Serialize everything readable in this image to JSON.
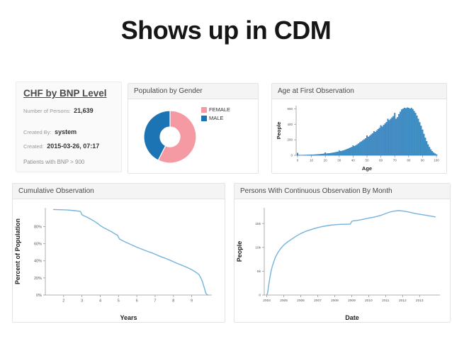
{
  "page": {
    "title": "Shows up in CDM"
  },
  "colors": {
    "female_pink": "#f59aa2",
    "male_blue": "#1c74b4",
    "bar_fill": "#4292c6",
    "bar_stroke": "#2171b5",
    "line_blue": "#74b3de",
    "axis": "#999999",
    "tick_text": "#555555",
    "label_text": "#222222"
  },
  "cohort_panel": {
    "title": "CHF by BNP Level",
    "fields": [
      {
        "label": "Number of Persons:",
        "value": "21,639"
      },
      {
        "label": "Created By:",
        "value": "system"
      },
      {
        "label": "Created:",
        "value": "2015-03-26, 07:17"
      }
    ],
    "footnote": "Patients with BNP > 900"
  },
  "chart_data": [
    {
      "id": "gender",
      "type": "pie",
      "title": "Population by Gender",
      "labels": [
        "FEMALE",
        "MALE"
      ],
      "values": [
        57.5,
        42.5
      ],
      "colors": [
        "#f59aa2",
        "#1c74b4"
      ],
      "donut": true,
      "legend_position": "right"
    },
    {
      "id": "age",
      "type": "bar",
      "title": "Age at First Observation",
      "xlabel": "Age",
      "ylabel": "People",
      "xlim": [
        -1,
        101
      ],
      "ylim": [
        0,
        640
      ],
      "xticks": [
        0,
        10,
        20,
        30,
        40,
        50,
        60,
        70,
        80,
        90,
        100
      ],
      "yticks": [
        0,
        200,
        400,
        600
      ],
      "ytick_labels": [
        "0",
        "200",
        "400",
        "600"
      ],
      "categories_note": "age in years 0-100, one bar per year",
      "values": [
        30,
        4,
        3,
        3,
        4,
        4,
        5,
        5,
        6,
        6,
        8,
        8,
        9,
        10,
        11,
        13,
        14,
        16,
        18,
        20,
        35,
        22,
        24,
        26,
        28,
        32,
        34,
        38,
        42,
        45,
        60,
        52,
        56,
        62,
        68,
        75,
        82,
        90,
        98,
        106,
        125,
        118,
        128,
        140,
        152,
        168,
        178,
        192,
        205,
        218,
        255,
        238,
        252,
        268,
        282,
        310,
        300,
        318,
        336,
        352,
        385,
        370,
        390,
        410,
        428,
        470,
        452,
        470,
        488,
        505,
        545,
        470,
        490,
        530,
        560,
        590,
        600,
        612,
        605,
        615,
        610,
        600,
        612,
        595,
        570,
        545,
        510,
        470,
        425,
        380,
        330,
        275,
        225,
        180,
        140,
        105,
        75,
        52,
        35,
        22,
        12
      ]
    },
    {
      "id": "cumulative",
      "type": "line",
      "title": "Cumulative Observation",
      "xlabel": "Years",
      "ylabel": "Percent of Population",
      "xlim": [
        1,
        10.1
      ],
      "ylim": [
        0,
        102
      ],
      "xticks": [
        2,
        3,
        4,
        5,
        6,
        7,
        8,
        9
      ],
      "yticks": [
        0,
        20,
        40,
        60,
        80
      ],
      "ytick_labels": [
        "0%",
        "20%",
        "40%",
        "60%",
        "80%"
      ],
      "points": [
        [
          1.45,
          100
        ],
        [
          1.8,
          99.8
        ],
        [
          2.2,
          99.4
        ],
        [
          2.6,
          98.7
        ],
        [
          2.9,
          97.8
        ],
        [
          2.95,
          96.5
        ],
        [
          3.0,
          94.0
        ],
        [
          3.1,
          92.8
        ],
        [
          3.3,
          90.8
        ],
        [
          3.5,
          88.4
        ],
        [
          3.7,
          86.0
        ],
        [
          3.9,
          83.0
        ],
        [
          4.0,
          81.2
        ],
        [
          4.2,
          78.6
        ],
        [
          4.4,
          76.4
        ],
        [
          4.6,
          74.2
        ],
        [
          4.8,
          71.6
        ],
        [
          4.95,
          69.8
        ],
        [
          5.0,
          67.5
        ],
        [
          5.05,
          65.5
        ],
        [
          5.2,
          63.8
        ],
        [
          5.4,
          61.7
        ],
        [
          5.6,
          59.8
        ],
        [
          5.8,
          57.8
        ],
        [
          6.0,
          56.0
        ],
        [
          6.2,
          54.2
        ],
        [
          6.4,
          52.6
        ],
        [
          6.6,
          51.0
        ],
        [
          6.8,
          49.5
        ],
        [
          7.0,
          47.8
        ],
        [
          7.2,
          45.9
        ],
        [
          7.4,
          44.2
        ],
        [
          7.6,
          42.6
        ],
        [
          7.8,
          40.9
        ],
        [
          8.0,
          39.0
        ],
        [
          8.2,
          37.0
        ],
        [
          8.4,
          35.4
        ],
        [
          8.6,
          33.6
        ],
        [
          8.8,
          31.8
        ],
        [
          9.0,
          29.6
        ],
        [
          9.1,
          28.3
        ],
        [
          9.2,
          27.0
        ],
        [
          9.3,
          25.6
        ],
        [
          9.4,
          23.8
        ],
        [
          9.45,
          22.0
        ],
        [
          9.5,
          20.0
        ],
        [
          9.55,
          17.5
        ],
        [
          9.6,
          14.5
        ],
        [
          9.65,
          11.0
        ],
        [
          9.7,
          7.5
        ],
        [
          9.73,
          5.0
        ],
        [
          9.76,
          3.0
        ],
        [
          9.8,
          1.2
        ],
        [
          9.85,
          0.3
        ],
        [
          9.9,
          0
        ]
      ]
    },
    {
      "id": "persons",
      "type": "line",
      "title": "Persons With Continuous Observation By Month",
      "xlabel": "Date",
      "ylabel": "People",
      "xlim": [
        2003.85,
        2014.2
      ],
      "ylim": [
        0,
        18300
      ],
      "xticks": [
        2004,
        2005,
        2006,
        2007,
        2008,
        2009,
        2010,
        2011,
        2012,
        2013
      ],
      "xtick_labels": [
        "2004",
        "2005",
        "2006",
        "2007",
        "2008",
        "2009",
        "2010",
        "2011",
        "2012",
        "2013"
      ],
      "yticks": [
        0,
        5000,
        10000,
        15000
      ],
      "ytick_labels": [
        "0",
        "5k",
        "10k",
        "15k"
      ],
      "points": [
        [
          2004.0,
          0
        ],
        [
          2004.05,
          500
        ],
        [
          2004.1,
          1800
        ],
        [
          2004.17,
          3400
        ],
        [
          2004.25,
          5000
        ],
        [
          2004.33,
          6100
        ],
        [
          2004.5,
          7900
        ],
        [
          2004.67,
          9000
        ],
        [
          2004.83,
          9800
        ],
        [
          2005.0,
          10500
        ],
        [
          2005.25,
          11200
        ],
        [
          2005.5,
          11800
        ],
        [
          2005.75,
          12400
        ],
        [
          2006.0,
          12900
        ],
        [
          2006.25,
          13300
        ],
        [
          2006.5,
          13600
        ],
        [
          2006.75,
          13900
        ],
        [
          2007.0,
          14150
        ],
        [
          2007.25,
          14350
        ],
        [
          2007.5,
          14500
        ],
        [
          2007.75,
          14650
        ],
        [
          2008.0,
          14750
        ],
        [
          2008.25,
          14820
        ],
        [
          2008.5,
          14850
        ],
        [
          2008.75,
          14850
        ],
        [
          2008.92,
          14900
        ],
        [
          2009.0,
          15450
        ],
        [
          2009.08,
          15550
        ],
        [
          2009.25,
          15600
        ],
        [
          2009.5,
          15750
        ],
        [
          2009.75,
          15950
        ],
        [
          2010.0,
          16150
        ],
        [
          2010.25,
          16300
        ],
        [
          2010.5,
          16500
        ],
        [
          2010.75,
          16750
        ],
        [
          2011.0,
          17100
        ],
        [
          2011.25,
          17400
        ],
        [
          2011.5,
          17600
        ],
        [
          2011.75,
          17700
        ],
        [
          2012.0,
          17650
        ],
        [
          2012.25,
          17500
        ],
        [
          2012.5,
          17300
        ],
        [
          2012.75,
          17100
        ],
        [
          2013.0,
          16950
        ],
        [
          2013.25,
          16800
        ],
        [
          2013.5,
          16650
        ],
        [
          2013.75,
          16500
        ],
        [
          2013.92,
          16400
        ]
      ]
    }
  ]
}
